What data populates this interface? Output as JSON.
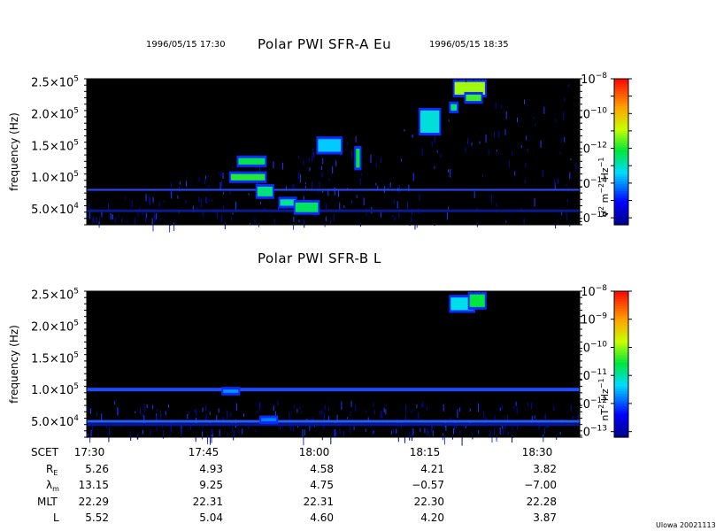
{
  "header": {
    "start_time": "1996/05/15 17:30",
    "end_time": "1996/05/15 18:35",
    "version": "Ulowa 20021113"
  },
  "chart_data": [
    {
      "type": "heatmap",
      "title": "Polar PWI SFR-A Eu",
      "ylabel": "frequency (Hz)",
      "yticks": [
        {
          "value": 50000,
          "mant": "5.0",
          "exp": "4"
        },
        {
          "value": 100000,
          "mant": "1.0",
          "exp": "5"
        },
        {
          "value": 150000,
          "mant": "1.5",
          "exp": "5"
        },
        {
          "value": 200000,
          "mant": "2.0",
          "exp": "5"
        },
        {
          "value": 250000,
          "mant": "2.5",
          "exp": "5"
        }
      ],
      "ylim": [
        25000,
        255000
      ],
      "xlim_minutes": [
        0,
        65
      ],
      "colorbar": {
        "unit_parts": [
          "V",
          "2",
          " m",
          "−2",
          " Hz",
          "−1"
        ],
        "log_range": [
          -16.4,
          -8
        ],
        "ticks": [
          {
            "log": -8,
            "label_exp": "−8"
          },
          {
            "log": -10,
            "label_exp": "−10"
          },
          {
            "log": -12,
            "label_exp": "−12"
          },
          {
            "log": -14,
            "label_exp": "−14"
          },
          {
            "log": -16,
            "label_exp": "−16"
          }
        ]
      },
      "features": [
        {
          "t0": 20.0,
          "t1": 23.5,
          "f0": 120000,
          "f1": 130000,
          "level": -12.3
        },
        {
          "t0": 19.0,
          "t1": 23.5,
          "f0": 95000,
          "f1": 105000,
          "level": -12.0
        },
        {
          "t0": 22.5,
          "t1": 24.5,
          "f0": 70000,
          "f1": 85000,
          "level": -12.6
        },
        {
          "t0": 25.5,
          "t1": 27.5,
          "f0": 55000,
          "f1": 65000,
          "level": -12.8
        },
        {
          "t0": 27.5,
          "t1": 30.5,
          "f0": 45000,
          "f1": 60000,
          "level": -12.4
        },
        {
          "t0": 30.5,
          "t1": 33.5,
          "f0": 140000,
          "f1": 160000,
          "level": -13.6
        },
        {
          "t0": 35.5,
          "t1": 36.0,
          "f0": 115000,
          "f1": 145000,
          "level": -12.2
        },
        {
          "t0": 44.0,
          "t1": 46.5,
          "f0": 170000,
          "f1": 205000,
          "level": -13.2
        },
        {
          "t0": 48.0,
          "t1": 48.8,
          "f0": 205000,
          "f1": 215000,
          "level": -12.6
        },
        {
          "t0": 48.5,
          "t1": 52.5,
          "f0": 230000,
          "f1": 250000,
          "level": -11.2
        },
        {
          "t0": 50.0,
          "t1": 52.0,
          "f0": 220000,
          "f1": 230000,
          "level": -11.8
        }
      ]
    },
    {
      "type": "heatmap",
      "title": "Polar PWI SFR-B L",
      "ylabel": "frequency (Hz)",
      "yticks": [
        {
          "value": 50000,
          "mant": "5.0",
          "exp": "4"
        },
        {
          "value": 100000,
          "mant": "1.0",
          "exp": "5"
        },
        {
          "value": 150000,
          "mant": "1.5",
          "exp": "5"
        },
        {
          "value": 200000,
          "mant": "2.0",
          "exp": "5"
        },
        {
          "value": 250000,
          "mant": "2.5",
          "exp": "5"
        }
      ],
      "ylim": [
        25000,
        255000
      ],
      "xlim_minutes": [
        0,
        65
      ],
      "colorbar": {
        "unit_parts": [
          "nT",
          "2",
          " Hz",
          "−1"
        ],
        "log_range": [
          -13.2,
          -8
        ],
        "ticks": [
          {
            "log": -8,
            "label_exp": "−8"
          },
          {
            "log": -9,
            "label_exp": "−9"
          },
          {
            "log": -10,
            "label_exp": "−10"
          },
          {
            "log": -11,
            "label_exp": "−11"
          },
          {
            "log": -12,
            "label_exp": "−12"
          },
          {
            "log": -13,
            "label_exp": "−13"
          }
        ]
      },
      "features": [
        {
          "t0": 18.0,
          "t1": 20.0,
          "f0": 95000,
          "f1": 100000,
          "level": -11.7
        },
        {
          "t0": 23.0,
          "t1": 25.0,
          "f0": 50000,
          "f1": 55000,
          "level": -11.8
        },
        {
          "t0": 48.0,
          "t1": 51.0,
          "f0": 225000,
          "f1": 245000,
          "level": -11.3
        },
        {
          "t0": 50.5,
          "t1": 52.5,
          "f0": 230000,
          "f1": 250000,
          "level": -10.6
        }
      ]
    }
  ],
  "ephemeris": {
    "row_labels": {
      "scet": "SCET",
      "re_main": "R",
      "re_sub": "E",
      "lambda_main": "λ",
      "lambda_sub": "m",
      "mlt": "MLT",
      "l": "L"
    },
    "columns": [
      {
        "scet": "17:30",
        "re": "5.26",
        "lambda": "13.15",
        "mlt": "22.29",
        "l": "5.52"
      },
      {
        "scet": "17:45",
        "re": "4.93",
        "lambda": "9.25",
        "mlt": "22.31",
        "l": "5.04"
      },
      {
        "scet": "18:00",
        "re": "4.58",
        "lambda": "4.75",
        "mlt": "22.31",
        "l": "4.60"
      },
      {
        "scet": "18:15",
        "re": "4.21",
        "lambda": "−0.57",
        "mlt": "22.30",
        "l": "4.20"
      },
      {
        "scet": "18:30",
        "re": "3.82",
        "lambda": "−7.00",
        "mlt": "22.28",
        "l": "3.87"
      }
    ]
  }
}
